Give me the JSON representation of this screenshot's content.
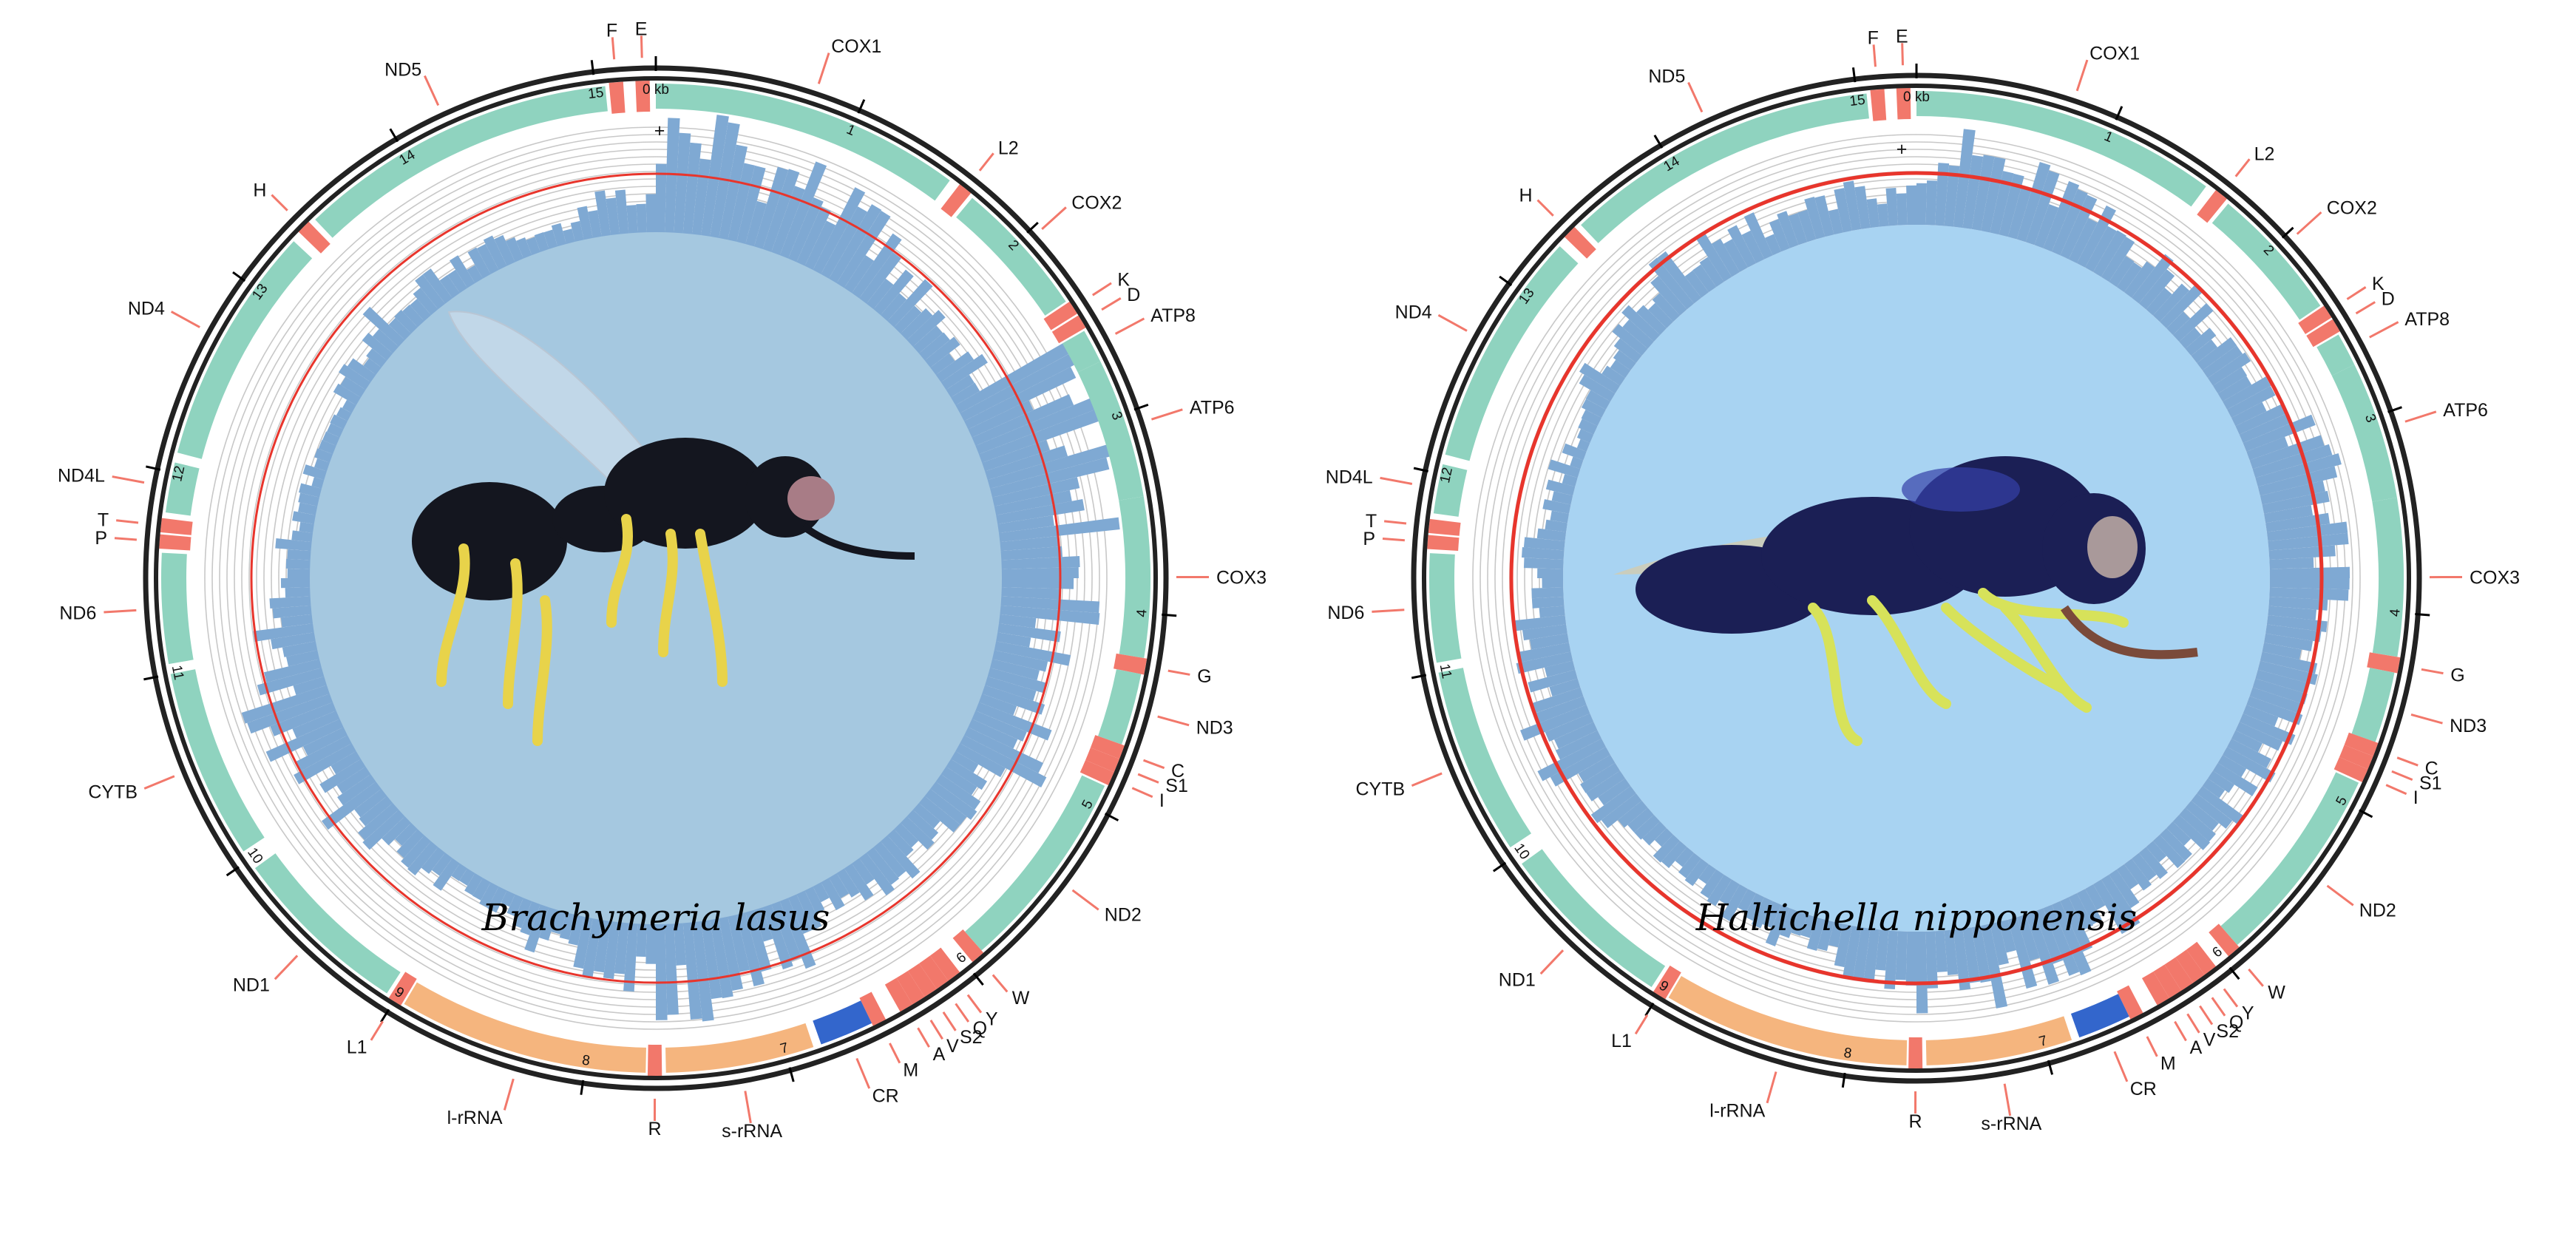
{
  "colors": {
    "protein_gene": "#8fd3bf",
    "trna": "#f2786b",
    "rrna": "#f5b57e",
    "control_region": "#3366cc",
    "gc_skew_bar": "#7fa9d3",
    "red_ring": "#e8352c",
    "outer_ring": "#222222",
    "grid": "#c8c8c8",
    "panel1_fill": "#a5c8e0",
    "panel2_fill": "#a8d3f2"
  },
  "panels": [
    {
      "species": "Brachymeria lasus",
      "strand_label": "+",
      "ticks": [
        {
          "label": "0 kb",
          "kb": 0
        },
        {
          "label": "1",
          "kb": 1
        },
        {
          "label": "2",
          "kb": 2
        },
        {
          "label": "3",
          "kb": 3
        },
        {
          "label": "4",
          "kb": 4
        },
        {
          "label": "5",
          "kb": 5
        },
        {
          "label": "6",
          "kb": 6
        },
        {
          "label": "7",
          "kb": 7
        },
        {
          "label": "8",
          "kb": 8
        },
        {
          "label": "9",
          "kb": 9
        },
        {
          "label": "10",
          "kb": 10
        },
        {
          "label": "11",
          "kb": 11
        },
        {
          "label": "12",
          "kb": 12
        },
        {
          "label": "13",
          "kb": 13
        },
        {
          "label": "14",
          "kb": 14
        },
        {
          "label": "15",
          "kb": 15
        }
      ],
      "features": [
        {
          "name": "COX1",
          "type": "protein",
          "start": 0.0,
          "end": 1.55
        },
        {
          "name": "L2",
          "type": "trna",
          "start": 1.6,
          "end": 1.67
        },
        {
          "name": "COX2",
          "type": "protein",
          "start": 1.69,
          "end": 2.38
        },
        {
          "name": "K",
          "type": "trna",
          "start": 2.39,
          "end": 2.46
        },
        {
          "name": "D",
          "type": "trna",
          "start": 2.47,
          "end": 2.54
        },
        {
          "name": "ATP8",
          "type": "protein",
          "start": 2.55,
          "end": 2.72
        },
        {
          "name": "ATP6",
          "type": "protein",
          "start": 2.72,
          "end": 3.42
        },
        {
          "name": "COX3",
          "type": "protein",
          "start": 3.42,
          "end": 4.22
        },
        {
          "name": "G",
          "type": "trna",
          "start": 4.22,
          "end": 4.3
        },
        {
          "name": "ND3",
          "type": "protein",
          "start": 4.3,
          "end": 4.66
        },
        {
          "name": "C",
          "type": "trna",
          "start": 4.66,
          "end": 4.73
        },
        {
          "name": "S1",
          "type": "trna",
          "start": 4.73,
          "end": 4.8
        },
        {
          "name": "I",
          "type": "trna",
          "start": 4.8,
          "end": 4.87
        },
        {
          "name": "ND2",
          "type": "protein",
          "start": 4.88,
          "end": 5.9
        },
        {
          "name": "W",
          "type": "trna",
          "start": 5.9,
          "end": 5.97
        },
        {
          "name": "Y",
          "type": "trna",
          "start": 6.05,
          "end": 6.12
        },
        {
          "name": "Q",
          "type": "trna",
          "start": 6.12,
          "end": 6.19
        },
        {
          "name": "S2",
          "type": "trna",
          "start": 6.19,
          "end": 6.26
        },
        {
          "name": "V",
          "type": "trna",
          "start": 6.26,
          "end": 6.33
        },
        {
          "name": "A",
          "type": "trna",
          "start": 6.33,
          "end": 6.4
        },
        {
          "name": "M",
          "type": "trna",
          "start": 6.48,
          "end": 6.55
        },
        {
          "name": "CR",
          "type": "cr",
          "start": 6.55,
          "end": 6.82
        },
        {
          "name": "s-rRNA",
          "type": "rrna",
          "start": 6.86,
          "end": 7.6
        },
        {
          "name": "R",
          "type": "trna",
          "start": 7.62,
          "end": 7.69
        },
        {
          "name": "l-rRNA",
          "type": "rrna",
          "start": 7.7,
          "end": 8.95
        },
        {
          "name": "L1",
          "type": "trna",
          "start": 8.96,
          "end": 9.03
        },
        {
          "name": "ND1",
          "type": "protein",
          "start": 9.05,
          "end": 9.95
        },
        {
          "name": "CYTB",
          "type": "protein",
          "start": 10.05,
          "end": 11.0
        },
        {
          "name": "ND6",
          "type": "protein",
          "start": 11.05,
          "end": 11.6
        },
        {
          "name": "P",
          "type": "trna",
          "start": 11.62,
          "end": 11.69
        },
        {
          "name": "T",
          "type": "trna",
          "start": 11.7,
          "end": 11.77
        },
        {
          "name": "ND4L",
          "type": "protein",
          "start": 11.8,
          "end": 12.05
        },
        {
          "name": "ND4",
          "type": "protein",
          "start": 12.1,
          "end": 13.3
        },
        {
          "name": "H",
          "type": "trna",
          "start": 13.35,
          "end": 13.42
        },
        {
          "name": "ND5",
          "type": "protein",
          "start": 13.45,
          "end": 15.05
        },
        {
          "name": "F",
          "type": "trna",
          "start": 15.07,
          "end": 15.14
        },
        {
          "name": "E",
          "type": "trna",
          "start": 15.2,
          "end": 15.27
        }
      ]
    },
    {
      "species": "Haltichella nipponensis",
      "strand_label": "+",
      "ticks": [
        {
          "label": "0 kb",
          "kb": 0
        },
        {
          "label": "1",
          "kb": 1
        },
        {
          "label": "2",
          "kb": 2
        },
        {
          "label": "3",
          "kb": 3
        },
        {
          "label": "4",
          "kb": 4
        },
        {
          "label": "5",
          "kb": 5
        },
        {
          "label": "6",
          "kb": 6
        },
        {
          "label": "7",
          "kb": 7
        },
        {
          "label": "8",
          "kb": 8
        },
        {
          "label": "9",
          "kb": 9
        },
        {
          "label": "10",
          "kb": 10
        },
        {
          "label": "11",
          "kb": 11
        },
        {
          "label": "12",
          "kb": 12
        },
        {
          "label": "13",
          "kb": 13
        },
        {
          "label": "14",
          "kb": 14
        },
        {
          "label": "15",
          "kb": 15
        }
      ],
      "features": [
        {
          "name": "COX1",
          "type": "protein",
          "start": 0.0,
          "end": 1.55
        },
        {
          "name": "L2",
          "type": "trna",
          "start": 1.6,
          "end": 1.67
        },
        {
          "name": "COX2",
          "type": "protein",
          "start": 1.69,
          "end": 2.38
        },
        {
          "name": "K",
          "type": "trna",
          "start": 2.39,
          "end": 2.46
        },
        {
          "name": "D",
          "type": "trna",
          "start": 2.47,
          "end": 2.54
        },
        {
          "name": "ATP8",
          "type": "protein",
          "start": 2.55,
          "end": 2.72
        },
        {
          "name": "ATP6",
          "type": "protein",
          "start": 2.72,
          "end": 3.42
        },
        {
          "name": "COX3",
          "type": "protein",
          "start": 3.42,
          "end": 4.22
        },
        {
          "name": "G",
          "type": "trna",
          "start": 4.22,
          "end": 4.3
        },
        {
          "name": "ND3",
          "type": "protein",
          "start": 4.3,
          "end": 4.66
        },
        {
          "name": "C",
          "type": "trna",
          "start": 4.66,
          "end": 4.73
        },
        {
          "name": "S1",
          "type": "trna",
          "start": 4.73,
          "end": 4.8
        },
        {
          "name": "I",
          "type": "trna",
          "start": 4.8,
          "end": 4.87
        },
        {
          "name": "ND2",
          "type": "protein",
          "start": 4.88,
          "end": 5.9
        },
        {
          "name": "W",
          "type": "trna",
          "start": 5.9,
          "end": 5.97
        },
        {
          "name": "Y",
          "type": "trna",
          "start": 6.05,
          "end": 6.12
        },
        {
          "name": "Q",
          "type": "trna",
          "start": 6.12,
          "end": 6.19
        },
        {
          "name": "S2",
          "type": "trna",
          "start": 6.19,
          "end": 6.26
        },
        {
          "name": "V",
          "type": "trna",
          "start": 6.26,
          "end": 6.33
        },
        {
          "name": "A",
          "type": "trna",
          "start": 6.33,
          "end": 6.4
        },
        {
          "name": "M",
          "type": "trna",
          "start": 6.48,
          "end": 6.55
        },
        {
          "name": "CR",
          "type": "cr",
          "start": 6.55,
          "end": 6.82
        },
        {
          "name": "s-rRNA",
          "type": "rrna",
          "start": 6.86,
          "end": 7.6
        },
        {
          "name": "R",
          "type": "trna",
          "start": 7.62,
          "end": 7.69
        },
        {
          "name": "l-rRNA",
          "type": "rrna",
          "start": 7.7,
          "end": 8.95
        },
        {
          "name": "L1",
          "type": "trna",
          "start": 8.96,
          "end": 9.03
        },
        {
          "name": "ND1",
          "type": "protein",
          "start": 9.05,
          "end": 9.95
        },
        {
          "name": "CYTB",
          "type": "protein",
          "start": 10.05,
          "end": 11.0
        },
        {
          "name": "ND6",
          "type": "protein",
          "start": 11.05,
          "end": 11.6
        },
        {
          "name": "P",
          "type": "trna",
          "start": 11.62,
          "end": 11.69
        },
        {
          "name": "T",
          "type": "trna",
          "start": 11.7,
          "end": 11.77
        },
        {
          "name": "ND4L",
          "type": "protein",
          "start": 11.8,
          "end": 12.05
        },
        {
          "name": "ND4",
          "type": "protein",
          "start": 12.1,
          "end": 13.3
        },
        {
          "name": "H",
          "type": "trna",
          "start": 13.35,
          "end": 13.42
        },
        {
          "name": "ND5",
          "type": "protein",
          "start": 13.45,
          "end": 15.05
        },
        {
          "name": "F",
          "type": "trna",
          "start": 15.07,
          "end": 15.14
        },
        {
          "name": "E",
          "type": "trna",
          "start": 15.2,
          "end": 15.27
        }
      ]
    }
  ]
}
